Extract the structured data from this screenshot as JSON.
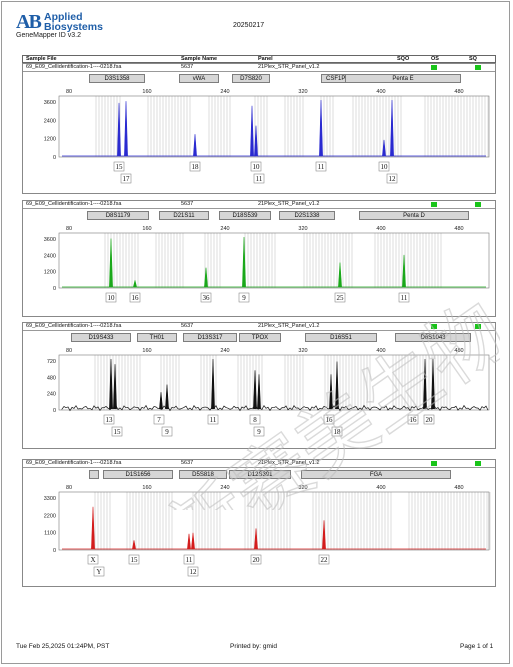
{
  "header": {
    "logo_line1": "Applied",
    "logo_line2": "Biosystems",
    "logo_mark": "AB",
    "product": "GeneMapper ID v3.2",
    "title": "20250217"
  },
  "columns": [
    "Sample File",
    "Sample Name",
    "Panel",
    "SQO",
    "OS",
    "SQ"
  ],
  "panels": [
    {
      "file": "69_E09_Cellidentification-1----0218.fsa",
      "name": "5637",
      "panel": "21Plex_STR_Panel_v1.2",
      "color": "#2a2ad0",
      "markers": [
        "D3S1358",
        "vWA",
        "D7S820",
        "CSF1PO",
        "Penta E"
      ],
      "x_ticks": [
        "80",
        "160",
        "240",
        "320",
        "400",
        "480"
      ],
      "y_ticks": [
        "3600",
        "2400",
        "1200",
        "0"
      ],
      "alleles_top": [
        "15",
        "18",
        "10",
        "11",
        "10"
      ],
      "alleles_bottom": [
        "17",
        "11",
        "12"
      ]
    },
    {
      "file": "69_E09_Cellidentification-1----0218.fsa",
      "name": "5637",
      "panel": "21Plex_STR_Panel_v1.2",
      "color": "#1aa81a",
      "markers": [
        "D8S1179",
        "D21S11",
        "D18S539",
        "D2S1338",
        "Penta D"
      ],
      "x_ticks": [
        "80",
        "160",
        "240",
        "320",
        "400",
        "480"
      ],
      "y_ticks": [
        "3600",
        "2400",
        "1200",
        "0"
      ],
      "alleles_top": [
        "10",
        "16",
        "36",
        "9",
        "25",
        "11"
      ],
      "alleles_bottom": []
    },
    {
      "file": "69_E09_Cellidentification-1----0218.fsa",
      "name": "5637",
      "panel": "21Plex_STR_Panel_v1.2",
      "color": "#111111",
      "markers": [
        "D19S433",
        "TH01",
        "D13S317",
        "TPOX",
        "D16S51",
        "D6S1043"
      ],
      "x_ticks": [
        "80",
        "160",
        "240",
        "320",
        "400",
        "480"
      ],
      "y_ticks": [
        "720",
        "480",
        "240",
        "0"
      ],
      "alleles_top": [
        "13",
        "7",
        "11",
        "8",
        "16",
        "16",
        "20"
      ],
      "alleles_bottom": [
        "15",
        "9",
        "9",
        "18"
      ]
    },
    {
      "file": "69_E09_Cellidentification-1----0218.fsa",
      "name": "5637",
      "panel": "21Plex_STR_Panel_v1.2",
      "color": "#d41c1c",
      "markers": [
        "",
        "D1S1656",
        "D5S818",
        "D12S391",
        "FGA"
      ],
      "x_ticks": [
        "80",
        "160",
        "240",
        "320",
        "400",
        "480"
      ],
      "y_ticks": [
        "3300",
        "2200",
        "1100",
        "0"
      ],
      "alleles_top": [
        "X",
        "15",
        "11",
        "20",
        "22"
      ],
      "alleles_bottom": [
        "Y",
        "12"
      ]
    }
  ],
  "footer": {
    "left": "Tue Feb 25,2025 01:24PM, PST",
    "center": "Printed by: gmid",
    "right": "Page 1 of 1"
  },
  "colors": {
    "brand": "#1f5ea8",
    "qc_ok": "#19c419"
  },
  "watermark": "新赛美生物"
}
